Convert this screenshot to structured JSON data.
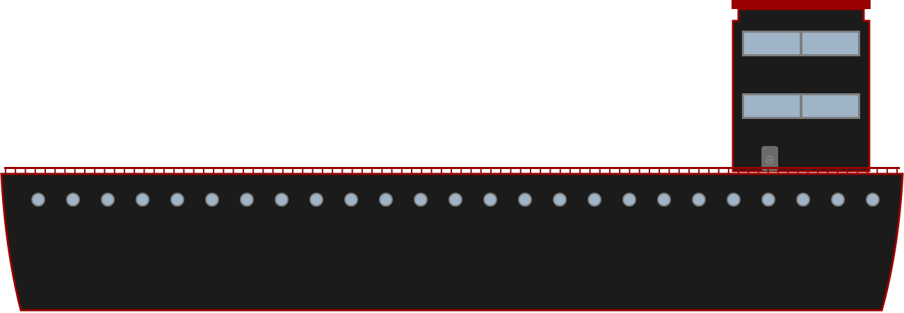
{
  "colors": {
    "hull": "#1b1b1b",
    "trim": "#990000",
    "window_glass": "#9fb4c6",
    "window_frame": "#7d7d7d",
    "porthole_glass": "#9fb4c6",
    "porthole_rim": "#7a7a7a",
    "hatch": "#6b6b6b",
    "background": "#ffffff"
  },
  "ship": {
    "porthole_count": 25,
    "railing_post_count": 91,
    "bridge_window_rows": 2,
    "bridge_window_panes_per_row": 2,
    "hatch_icon": "gear-icon"
  }
}
